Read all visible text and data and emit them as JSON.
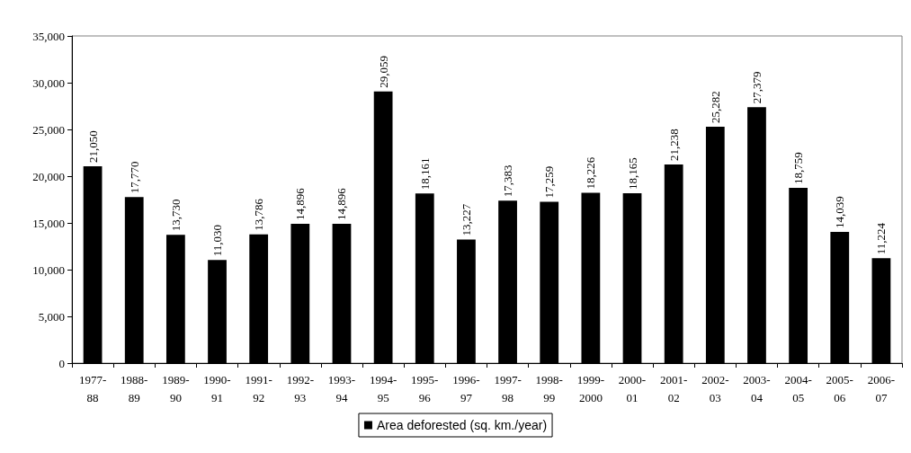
{
  "chart_data": {
    "type": "bar",
    "categories": [
      "1977-\n88",
      "1988-\n89",
      "1989-\n90",
      "1990-\n91",
      "1991-\n92",
      "1992-\n93",
      "1993-\n94",
      "1994-\n95",
      "1995-\n96",
      "1996-\n97",
      "1997-\n98",
      "1998-\n99",
      "1999-\n2000",
      "2000-\n01",
      "2001-\n02",
      "2002-\n03",
      "2003-\n04",
      "2004-\n05",
      "2005-\n06",
      "2006-\n07"
    ],
    "series": [
      {
        "name": "Area deforested (sq. km./year)",
        "color": "#000000",
        "values": [
          21050,
          17770,
          13730,
          11030,
          13786,
          14896,
          14896,
          29059,
          18161,
          13227,
          17383,
          17259,
          18226,
          18165,
          21238,
          25282,
          27379,
          18759,
          14039,
          11224
        ],
        "value_labels": [
          "21,050",
          "17,770",
          "13,730",
          "11,030",
          "13,786",
          "14,896",
          "14,896",
          "29,059",
          "18,161",
          "13,227",
          "17,383",
          "17,259",
          "18,226",
          "18,165",
          "21,238",
          "25,282",
          "27,379",
          "18,759",
          "14,039",
          "11,224"
        ]
      }
    ],
    "ylim": [
      0,
      35000
    ],
    "yticks": [
      {
        "value": 0,
        "label": "0"
      },
      {
        "value": 5000,
        "label": "5,000"
      },
      {
        "value": 10000,
        "label": "10,000"
      },
      {
        "value": 15000,
        "label": "15,000"
      },
      {
        "value": 20000,
        "label": "20,000"
      },
      {
        "value": 25000,
        "label": "25,000"
      },
      {
        "value": 30000,
        "label": "30,000"
      },
      {
        "value": 35000,
        "label": "35,000"
      }
    ],
    "grid": false,
    "legend": "bottom"
  }
}
